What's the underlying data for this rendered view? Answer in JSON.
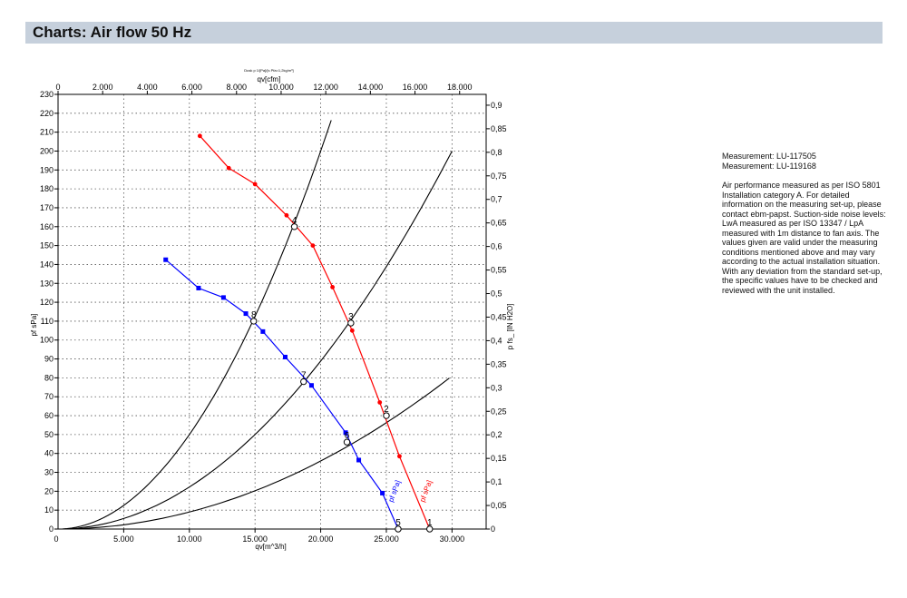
{
  "header": {
    "title": "Charts: Air flow 50 Hz"
  },
  "info": {
    "measurement_1": "Measurement: LU-117505",
    "measurement_2": "Measurement: LU-119168",
    "description": "Air performance measured as per ISO 5801 Installation category A. For detailed information on the measuring set-up, please contact ebm-papst. Suction-side noise levels: LwA measured as per ISO 13347 / LpA measured with 1m distance to fan axis. The values given are valid under the measuring conditions mentioned above and may vary according to the actual installation situation. With any deviation from the standard set-up, the specific values have to be checked and reviewed with the unit installed."
  },
  "chart_data": {
    "type": "line",
    "top_note": "Dusk p 1/[Pa]/[s Pfa=1,2kg/m³]",
    "xlabel_bottom": "qv[m^3/h]",
    "xlabel_top": "qv[cfm]",
    "ylabel_left": "pf sPa]",
    "ylabel_right": "p fs_ [IN H2O]",
    "xlim_bottom": [
      0,
      32600
    ],
    "xlim_top": [
      0,
      19190
    ],
    "ylim_left": [
      0,
      230
    ],
    "ylim_right": [
      0,
      0.923
    ],
    "bottom_ticks": [
      {
        "value": 5000,
        "label": "5.000"
      },
      {
        "value": 10000,
        "label": "10.000"
      },
      {
        "value": 15000,
        "label": "15.000"
      },
      {
        "value": 20000,
        "label": "20.000"
      },
      {
        "value": 25000,
        "label": "25.000"
      },
      {
        "value": 30000,
        "label": "30.000"
      }
    ],
    "top_ticks": [
      {
        "value": 0,
        "label": "0"
      },
      {
        "value": 2000,
        "label": "2.000"
      },
      {
        "value": 4000,
        "label": "4.000"
      },
      {
        "value": 6000,
        "label": "6.000"
      },
      {
        "value": 8000,
        "label": "8.000"
      },
      {
        "value": 10000,
        "label": "10.000"
      },
      {
        "value": 12000,
        "label": "12.000"
      },
      {
        "value": 14000,
        "label": "14.000"
      },
      {
        "value": 16000,
        "label": "16.000"
      },
      {
        "value": 18000,
        "label": "18.000"
      }
    ],
    "left_ticks": [
      {
        "value": 0,
        "label": "0"
      },
      {
        "value": 10,
        "label": "10"
      },
      {
        "value": 20,
        "label": "20"
      },
      {
        "value": 30,
        "label": "30"
      },
      {
        "value": 40,
        "label": "40"
      },
      {
        "value": 50,
        "label": "50"
      },
      {
        "value": 60,
        "label": "60"
      },
      {
        "value": 70,
        "label": "70"
      },
      {
        "value": 80,
        "label": "80"
      },
      {
        "value": 90,
        "label": "90"
      },
      {
        "value": 100,
        "label": "100"
      },
      {
        "value": 110,
        "label": "110"
      },
      {
        "value": 120,
        "label": "120"
      },
      {
        "value": 130,
        "label": "130"
      },
      {
        "value": 140,
        "label": "140"
      },
      {
        "value": 150,
        "label": "150"
      },
      {
        "value": 160,
        "label": "160"
      },
      {
        "value": 170,
        "label": "170"
      },
      {
        "value": 180,
        "label": "180"
      },
      {
        "value": 190,
        "label": "190"
      },
      {
        "value": 200,
        "label": "200"
      },
      {
        "value": 210,
        "label": "210"
      },
      {
        "value": 220,
        "label": "220"
      },
      {
        "value": 230,
        "label": "230"
      }
    ],
    "right_ticks": [
      {
        "value": 0,
        "label": "0"
      },
      {
        "value": 0.05,
        "label": "0,05"
      },
      {
        "value": 0.1,
        "label": "0,1"
      },
      {
        "value": 0.15,
        "label": "0,15"
      },
      {
        "value": 0.2,
        "label": "0,2"
      },
      {
        "value": 0.25,
        "label": "0,25"
      },
      {
        "value": 0.3,
        "label": "0,3"
      },
      {
        "value": 0.35,
        "label": "0,35"
      },
      {
        "value": 0.4,
        "label": "0,4"
      },
      {
        "value": 0.45,
        "label": "0,45"
      },
      {
        "value": 0.5,
        "label": "0,5"
      },
      {
        "value": 0.55,
        "label": "0,55"
      },
      {
        "value": 0.6,
        "label": "0,6"
      },
      {
        "value": 0.65,
        "label": "0,65"
      },
      {
        "value": 0.7,
        "label": "0,7"
      },
      {
        "value": 0.75,
        "label": "0,75"
      },
      {
        "value": 0.8,
        "label": "0,8"
      },
      {
        "value": 0.85,
        "label": "0,85"
      },
      {
        "value": 0.9,
        "label": "0,9"
      }
    ],
    "grid": true,
    "series": [
      {
        "name": "pf sPa]",
        "color": "#ff0000",
        "points": [
          [
            10800,
            208
          ],
          [
            13000,
            191
          ],
          [
            15000,
            182.5
          ],
          [
            17400,
            166
          ],
          [
            19400,
            150
          ],
          [
            20900,
            128
          ],
          [
            22400,
            105
          ],
          [
            24500,
            67
          ],
          [
            26000,
            38.5
          ],
          [
            28300,
            0
          ]
        ],
        "curve_label": "pf sPa]"
      },
      {
        "name": "pf sPa]",
        "color": "#0000ff",
        "points": [
          [
            8200,
            142.5
          ],
          [
            10700,
            127.5
          ],
          [
            12600,
            122.5
          ],
          [
            14300,
            114
          ],
          [
            15600,
            104.5
          ],
          [
            17300,
            91
          ],
          [
            19300,
            76
          ],
          [
            21900,
            51
          ],
          [
            22900,
            36.5
          ],
          [
            24700,
            19
          ],
          [
            25900,
            0
          ]
        ],
        "curve_label": "pf sPa]"
      }
    ],
    "system_curves": [
      {
        "name": "curve-1",
        "color": "#000000",
        "k_over_1e6": 0.09,
        "x_end": 29800
      },
      {
        "name": "curve-2",
        "color": "#000000",
        "k_over_1e6": 0.2222,
        "x_end": 30000
      },
      {
        "name": "curve-3",
        "color": "#000000",
        "k_over_1e6": 0.5,
        "x_end": 20800
      }
    ],
    "operating_points": [
      {
        "label": "2",
        "x": 25000,
        "y": 60
      },
      {
        "label": "3",
        "x": 22300,
        "y": 109
      },
      {
        "label": "4",
        "x": 18000,
        "y": 160
      },
      {
        "label": "6",
        "x": 22000,
        "y": 46
      },
      {
        "label": "7",
        "x": 18700,
        "y": 78
      },
      {
        "label": "8",
        "x": 14900,
        "y": 110
      },
      {
        "label": "1",
        "x": 28300,
        "y": 0
      },
      {
        "label": "5",
        "x": 25900,
        "y": 0
      }
    ]
  }
}
